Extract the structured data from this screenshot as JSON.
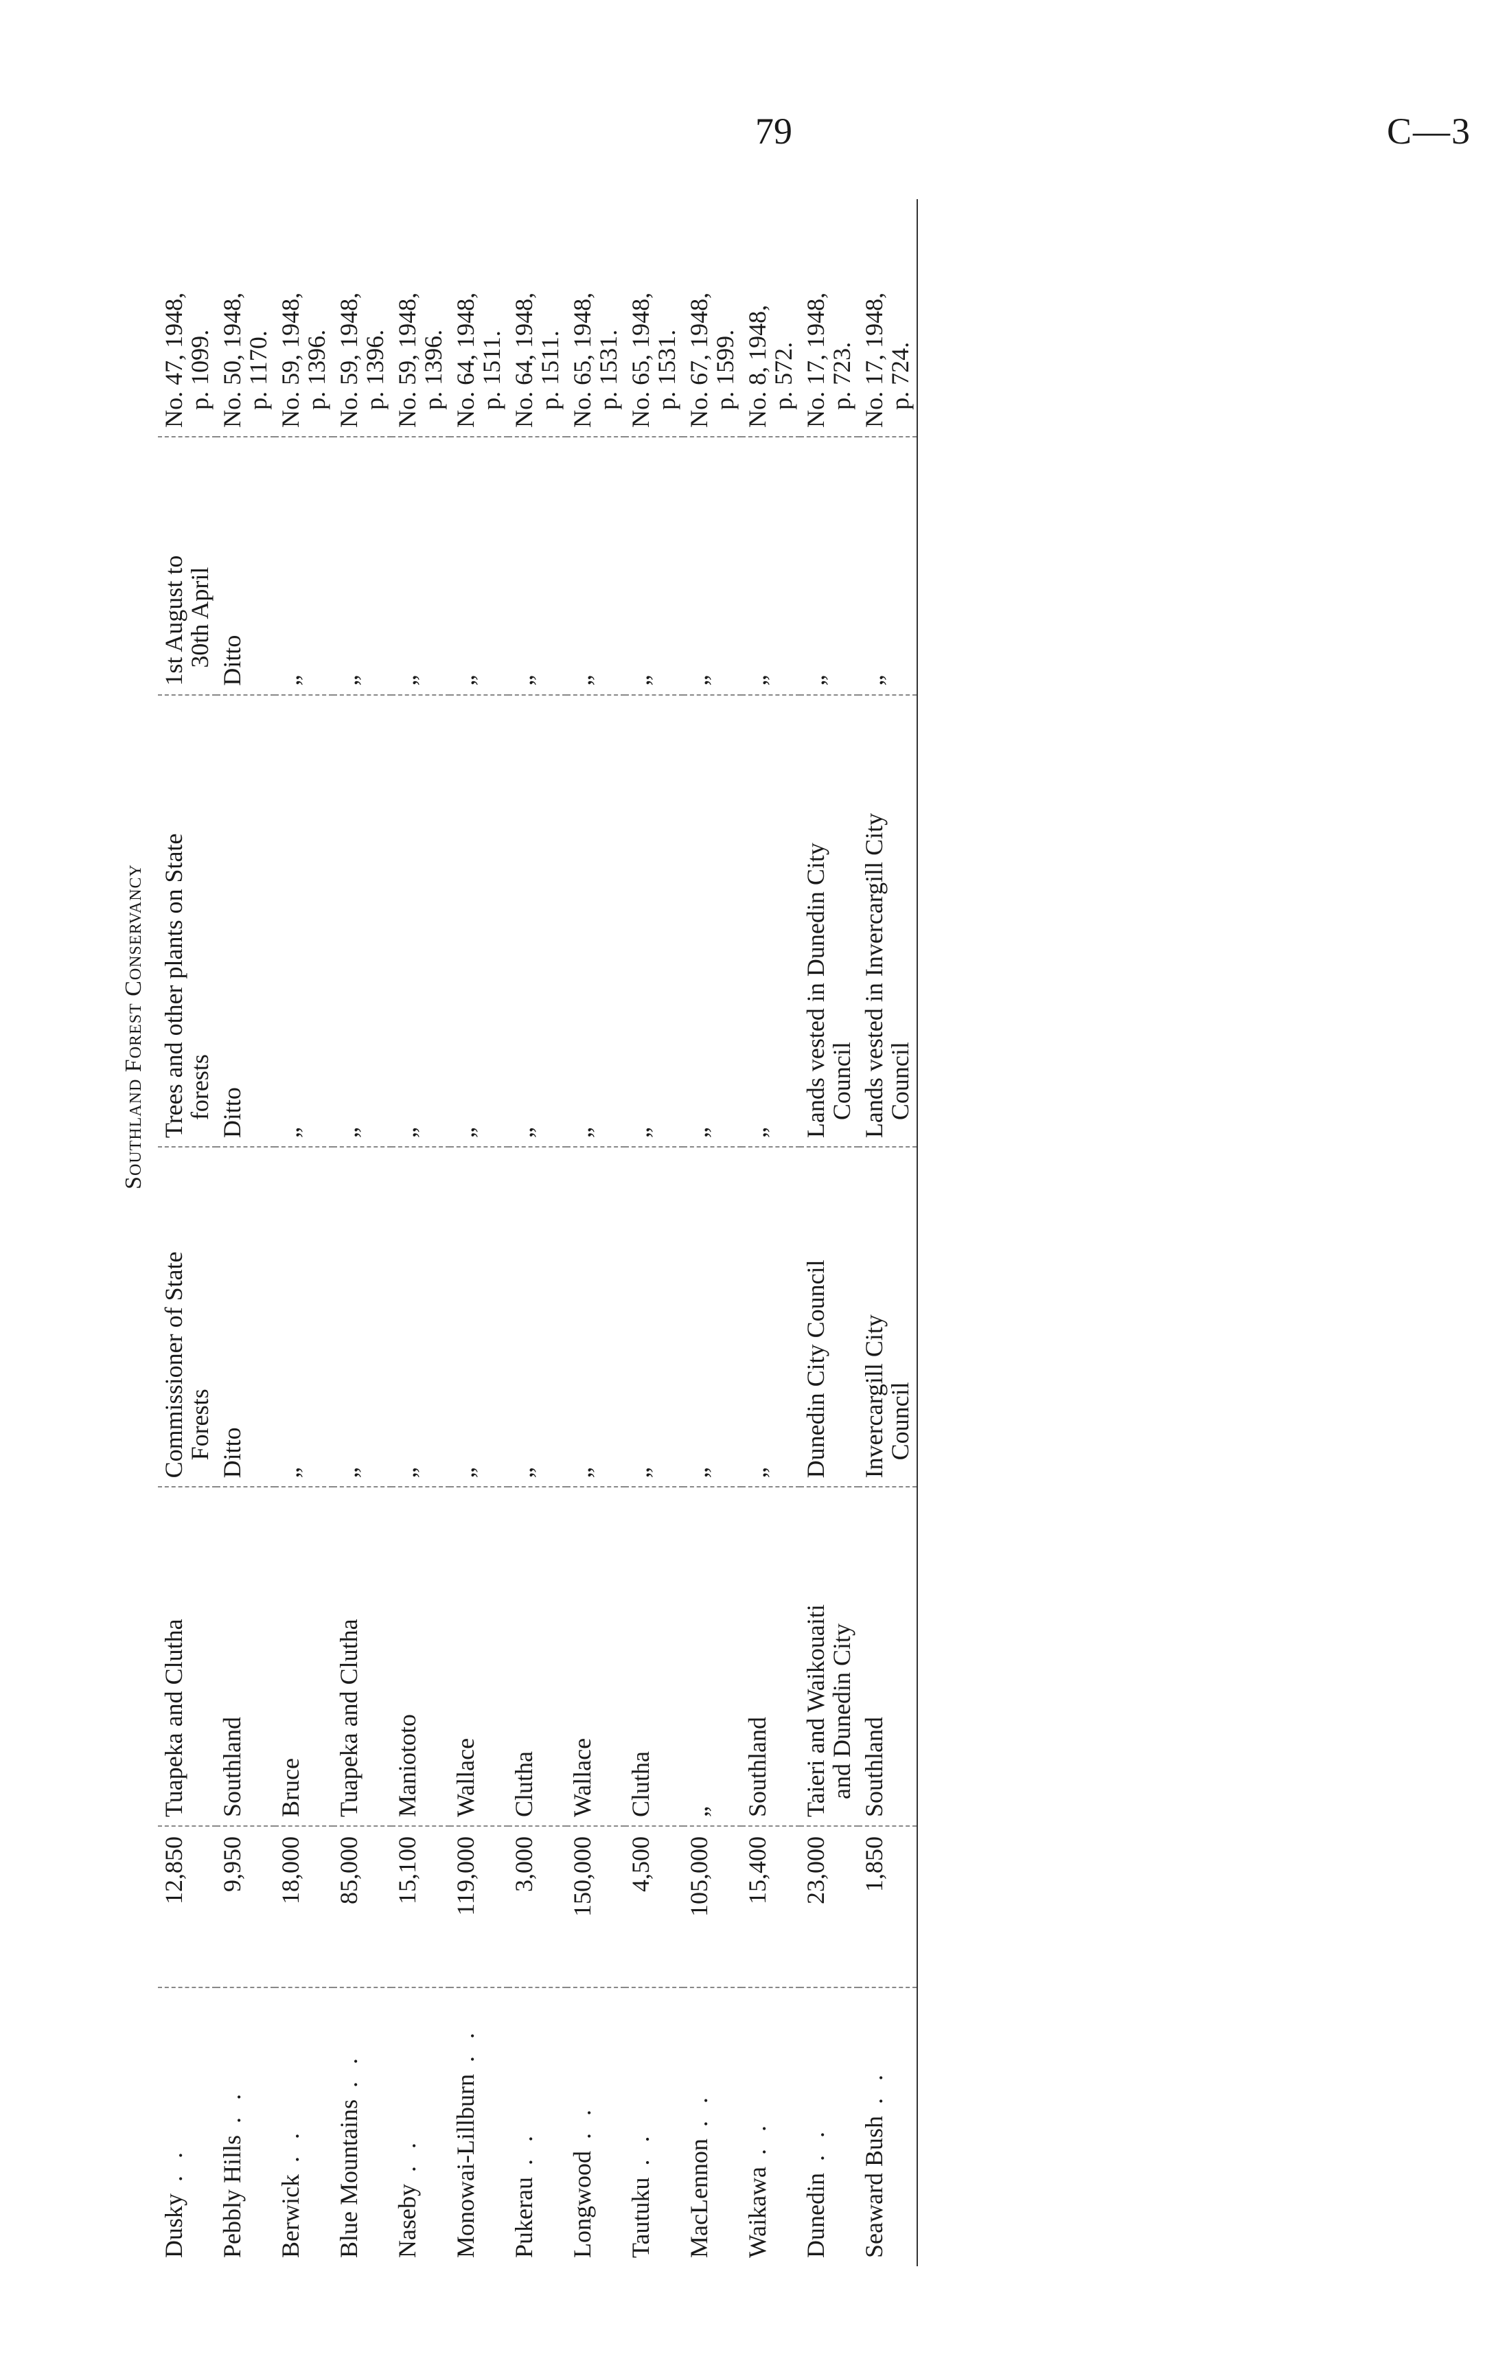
{
  "header": {
    "page_number": "79",
    "document_code": "C—3"
  },
  "table": {
    "title": "Southland Forest Conservancy",
    "rows": [
      {
        "name": "Dusky",
        "area": "12,850",
        "district": "Tuapeka and Clutha",
        "district2": "",
        "authority": "Commissioner of State",
        "authority2": "Forests",
        "plants": "Trees and other plants on State",
        "plants2": "forests",
        "period": "1st August to",
        "period2": "30th April",
        "gazette": "No. 47, 1948,",
        "gazette2": "p. 1099."
      },
      {
        "name": "Pebbly Hills",
        "area": "9,950",
        "district": "Southland",
        "district2": "",
        "authority": "Ditto",
        "authority2": "",
        "plants": "Ditto",
        "plants2": "",
        "period": "Ditto",
        "period2": "",
        "gazette": "No. 50, 1948,",
        "gazette2": "p. 1170."
      },
      {
        "name": "Berwick",
        "area": "18,000",
        "district": "Bruce",
        "district2": "",
        "authority": "„",
        "authority2": "",
        "plants": "„",
        "plants2": "",
        "period": "„",
        "period2": "",
        "gazette": "No. 59, 1948,",
        "gazette2": "p. 1396."
      },
      {
        "name": "Blue Mountains",
        "area": "85,000",
        "district": "Tuapeka and Clutha",
        "district2": "",
        "authority": "„",
        "authority2": "",
        "plants": "„",
        "plants2": "",
        "period": "„",
        "period2": "",
        "gazette": "No. 59, 1948,",
        "gazette2": "p. 1396."
      },
      {
        "name": "Naseby",
        "area": "15,100",
        "district": "Maniototo",
        "district2": "",
        "authority": "„",
        "authority2": "",
        "plants": "„",
        "plants2": "",
        "period": "„",
        "period2": "",
        "gazette": "No. 59, 1948,",
        "gazette2": "p. 1396."
      },
      {
        "name": "Monowai-Lillburn",
        "area": "119,000",
        "district": "Wallace",
        "district2": "",
        "authority": "„",
        "authority2": "",
        "plants": "„",
        "plants2": "",
        "period": "„",
        "period2": "",
        "gazette": "No. 64, 1948,",
        "gazette2": "p. 1511."
      },
      {
        "name": "Pukerau",
        "area": "3,000",
        "district": "Clutha",
        "district2": "",
        "authority": "„",
        "authority2": "",
        "plants": "„",
        "plants2": "",
        "period": "„",
        "period2": "",
        "gazette": "No. 64, 1948,",
        "gazette2": "p. 1511."
      },
      {
        "name": "Longwood",
        "area": "150,000",
        "district": "Wallace",
        "district2": "",
        "authority": "„",
        "authority2": "",
        "plants": "„",
        "plants2": "",
        "period": "„",
        "period2": "",
        "gazette": "No. 65, 1948,",
        "gazette2": "p. 1531."
      },
      {
        "name": "Tautuku",
        "area": "4,500",
        "district": "Clutha",
        "district2": "",
        "authority": "„",
        "authority2": "",
        "plants": "„",
        "plants2": "",
        "period": "„",
        "period2": "",
        "gazette": "No. 65, 1948,",
        "gazette2": "p. 1531."
      },
      {
        "name": "MacLennon",
        "area": "105,000",
        "district": "„",
        "district2": "",
        "authority": "„",
        "authority2": "",
        "plants": "„",
        "plants2": "",
        "period": "„",
        "period2": "",
        "gazette": "No. 67, 1948,",
        "gazette2": "p. 1599."
      },
      {
        "name": "Waikawa",
        "area": "15,400",
        "district": "Southland",
        "district2": "",
        "authority": "„",
        "authority2": "",
        "plants": "„",
        "plants2": "",
        "period": "„",
        "period2": "",
        "gazette": "No. 8, 1948,",
        "gazette2": "p. 572."
      },
      {
        "name": "Dunedin",
        "area": "23,000",
        "district": "Taieri and Waikouaiti",
        "district2": "and Dunedin City",
        "authority": "Dunedin City Council",
        "authority2": "",
        "plants": "Lands vested in Dunedin City",
        "plants2": "Council",
        "period": "„",
        "period2": "",
        "gazette": "No. 17, 1948,",
        "gazette2": "p. 723."
      },
      {
        "name": "Seaward Bush",
        "area": "1,850",
        "district": "Southland",
        "district2": "",
        "authority": "Invercargill City",
        "authority2": "Council",
        "plants": "Lands vested in Invercargill City",
        "plants2": "Council",
        "period": "„",
        "period2": "",
        "gazette": "No. 17, 1948,",
        "gazette2": "p. 724."
      }
    ]
  }
}
